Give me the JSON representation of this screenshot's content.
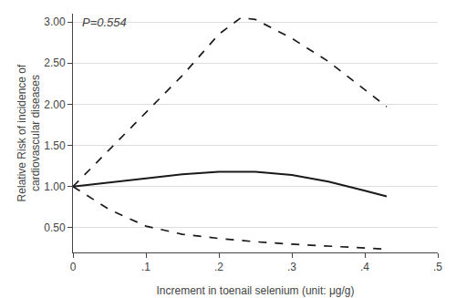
{
  "chart_data": {
    "type": "line",
    "xlabel": "Increment in toenail selenium (unit: μg/g)",
    "ylabel": "Relative Risk of incidence of\ncardiovascular diseases",
    "annotations": [
      "P=0.554"
    ],
    "xlim": [
      0,
      0.5
    ],
    "ylim": [
      0.2,
      3.1
    ],
    "xticks": [
      0,
      {
        "value": 0.1,
        "label": ".1"
      },
      {
        "value": 0.2,
        "label": ".2"
      },
      {
        "value": 0.3,
        "label": ".3"
      },
      {
        "value": 0.4,
        "label": ".4"
      },
      {
        "value": 0.5,
        "label": ".5"
      }
    ],
    "yticks": [
      {
        "value": 0.5,
        "label": "0.50"
      },
      {
        "value": 1.0,
        "label": "1.00"
      },
      {
        "value": 1.5,
        "label": "1.50"
      },
      {
        "value": 2.0,
        "label": "2.00"
      },
      {
        "value": 2.5,
        "label": "2.50"
      },
      {
        "value": 3.0,
        "label": "3.00"
      }
    ],
    "grid": "y",
    "series": [
      {
        "color": "#1a1a1a",
        "line_style": "solid",
        "x": [
          0.0,
          0.05,
          0.1,
          0.15,
          0.2,
          0.25,
          0.3,
          0.35,
          0.4,
          0.43
        ],
        "values": [
          1.0,
          1.05,
          1.1,
          1.15,
          1.18,
          1.18,
          1.14,
          1.06,
          0.95,
          0.88
        ]
      },
      {
        "color": "#1a1a1a",
        "line_style": "dashed",
        "x": [
          0.0,
          0.05,
          0.1,
          0.15,
          0.2,
          0.23,
          0.25,
          0.3,
          0.35,
          0.4,
          0.43
        ],
        "values": [
          1.0,
          1.45,
          1.9,
          2.35,
          2.85,
          3.05,
          3.03,
          2.8,
          2.52,
          2.18,
          1.97
        ]
      },
      {
        "color": "#1a1a1a",
        "line_style": "dashed",
        "x": [
          0.0,
          0.05,
          0.1,
          0.15,
          0.2,
          0.25,
          0.3,
          0.35,
          0.4,
          0.43
        ],
        "values": [
          1.0,
          0.72,
          0.52,
          0.42,
          0.37,
          0.33,
          0.3,
          0.28,
          0.26,
          0.24
        ]
      }
    ]
  }
}
